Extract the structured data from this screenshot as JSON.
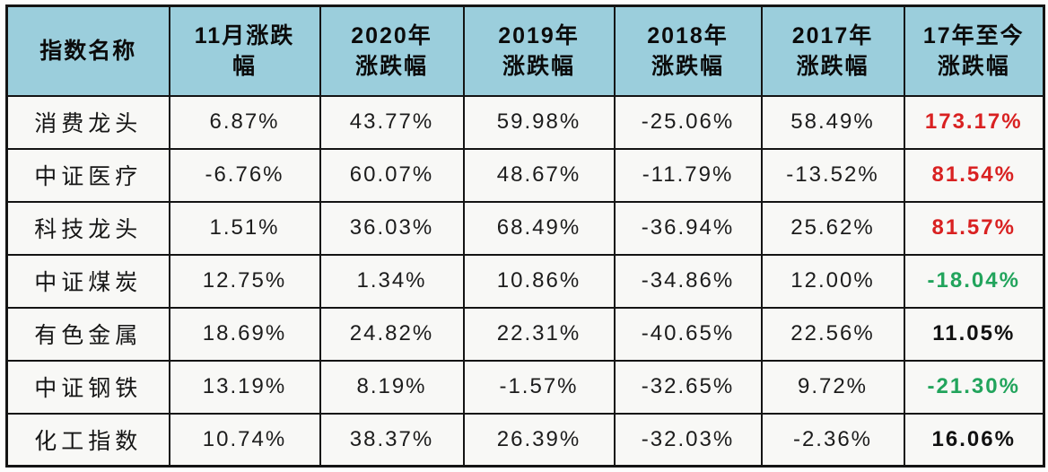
{
  "table": {
    "border_color": "#141414",
    "header_bg": "#9bcedc",
    "row_bg": "#f8f8f6",
    "colors": {
      "positive_strong": "#d92121",
      "negative": "#22a45c",
      "neutral_bold": "#111111"
    },
    "header": [
      {
        "line1": "指数名称",
        "line2": ""
      },
      {
        "line1": "11月涨跌",
        "line2": "幅"
      },
      {
        "line1": "2020年",
        "line2": "涨跌幅"
      },
      {
        "line1": "2019年",
        "line2": "涨跌幅"
      },
      {
        "line1": "2018年",
        "line2": "涨跌幅"
      },
      {
        "line1": "2017年",
        "line2": "涨跌幅"
      },
      {
        "line1": "17年至今",
        "line2": "涨跌幅"
      }
    ],
    "rows": [
      {
        "name": "消费龙头",
        "values": [
          "6.87%",
          "43.77%",
          "59.98%",
          "-25.06%",
          "58.49%"
        ],
        "total": "173.17%",
        "total_color": "#d92121"
      },
      {
        "name": "中证医疗",
        "values": [
          "-6.76%",
          "60.07%",
          "48.67%",
          "-11.79%",
          "-13.52%"
        ],
        "total": "81.54%",
        "total_color": "#d92121"
      },
      {
        "name": "科技龙头",
        "values": [
          "1.51%",
          "36.03%",
          "68.49%",
          "-36.94%",
          "25.62%"
        ],
        "total": "81.57%",
        "total_color": "#d92121"
      },
      {
        "name": "中证煤炭",
        "values": [
          "12.75%",
          "1.34%",
          "10.86%",
          "-34.86%",
          "12.00%"
        ],
        "total": "-18.04%",
        "total_color": "#22a45c"
      },
      {
        "name": "有色金属",
        "values": [
          "18.69%",
          "24.82%",
          "22.31%",
          "-40.65%",
          "22.56%"
        ],
        "total": "11.05%",
        "total_color": "#111111"
      },
      {
        "name": "中证钢铁",
        "values": [
          "13.19%",
          "8.19%",
          "-1.57%",
          "-32.65%",
          "9.72%"
        ],
        "total": "-21.30%",
        "total_color": "#22a45c"
      },
      {
        "name": "化工指数",
        "values": [
          "10.74%",
          "38.37%",
          "26.39%",
          "-32.03%",
          "-2.36%"
        ],
        "total": "16.06%",
        "total_color": "#111111"
      }
    ]
  },
  "chart_data": {
    "type": "table",
    "columns": [
      "指数名称",
      "11月涨跌幅",
      "2020年涨跌幅",
      "2019年涨跌幅",
      "2018年涨跌幅",
      "2017年涨跌幅",
      "17年至今涨跌幅"
    ],
    "rows": [
      [
        "消费龙头",
        "6.87%",
        "43.77%",
        "59.98%",
        "-25.06%",
        "58.49%",
        "173.17%"
      ],
      [
        "中证医疗",
        "-6.76%",
        "60.07%",
        "48.67%",
        "-11.79%",
        "-13.52%",
        "81.54%"
      ],
      [
        "科技龙头",
        "1.51%",
        "36.03%",
        "68.49%",
        "-36.94%",
        "25.62%",
        "81.57%"
      ],
      [
        "中证煤炭",
        "12.75%",
        "1.34%",
        "10.86%",
        "-34.86%",
        "12.00%",
        "-18.04%"
      ],
      [
        "有色金属",
        "18.69%",
        "24.82%",
        "22.31%",
        "-40.65%",
        "22.56%",
        "11.05%"
      ],
      [
        "中证钢铁",
        "13.19%",
        "8.19%",
        "-1.57%",
        "-32.65%",
        "9.72%",
        "-21.30%"
      ],
      [
        "化工指数",
        "10.74%",
        "38.37%",
        "26.39%",
        "-32.03%",
        "-2.36%",
        "16.06%"
      ]
    ],
    "notes": "Last column values are bold; red for large cumulative gains, green for cumulative losses, black for other gains.",
    "legend_position": "none",
    "grid": true
  }
}
